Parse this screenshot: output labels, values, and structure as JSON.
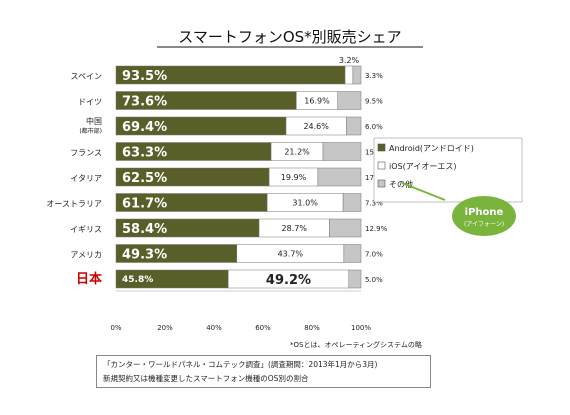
{
  "chart_data": {
    "type": "bar",
    "stacked": true,
    "orientation": "horizontal",
    "title": "スマートフォンOS*別販売シェア",
    "categories": [
      "スペイン",
      "ドイツ",
      "中国",
      "フランス",
      "イタリア",
      "オーストラリア",
      "イギリス",
      "アメリカ",
      "日本"
    ],
    "category_sublabels": [
      "",
      "",
      "(都市部)",
      "",
      "",
      "",
      "",
      "",
      ""
    ],
    "series": [
      {
        "name": "Android(アンドロイド)",
        "color": "#5a5e28",
        "values": [
          93.5,
          73.6,
          69.4,
          63.3,
          62.5,
          61.7,
          58.4,
          49.3,
          45.8
        ]
      },
      {
        "name": "iOS(アイオーエス)",
        "color": "#ffffff",
        "values": [
          3.2,
          16.9,
          24.6,
          21.2,
          19.9,
          31.0,
          28.7,
          43.7,
          49.2
        ]
      },
      {
        "name": "その他",
        "color": "#c6c6c6",
        "values": [
          3.3,
          9.5,
          6.0,
          15.5,
          17.6,
          7.3,
          12.9,
          7.0,
          5.0
        ]
      }
    ],
    "value_labels": {
      "android": [
        "93.5%",
        "73.6%",
        "69.4%",
        "63.3%",
        "62.5%",
        "61.7%",
        "58.4%",
        "49.3%",
        "45.8%"
      ],
      "ios": [
        "3.2%",
        "16.9%",
        "24.6%",
        "21.2%",
        "19.9%",
        "31.0%",
        "28.7%",
        "43.7%",
        "49.2%"
      ],
      "other": [
        "3.3%",
        "9.5%",
        "6.0%",
        "15.5%",
        "17.6%",
        "7.3%",
        "12.9%",
        "7.0%",
        "5.0%"
      ]
    },
    "highlight_category": "日本",
    "highlight_color": "#cc0000",
    "xlim": [
      0,
      100
    ],
    "xticks": [
      "0%",
      "20%",
      "40%",
      "60%",
      "80%",
      "100%"
    ],
    "legend_position": "right",
    "callout": {
      "title": "iPhone",
      "subtitle": "(アイフォーン)",
      "color": "#7ab43c"
    }
  },
  "footnotes": {
    "asterisk": "*OSとは、オペレーティングシステムの略",
    "source_line1": "「カンター・ワールドパネル・コムテック調査」(調査期間：2013年1月から3月)",
    "source_line2": "新規契約又は機種変更したスマートフォン機種のOS別の割合"
  }
}
